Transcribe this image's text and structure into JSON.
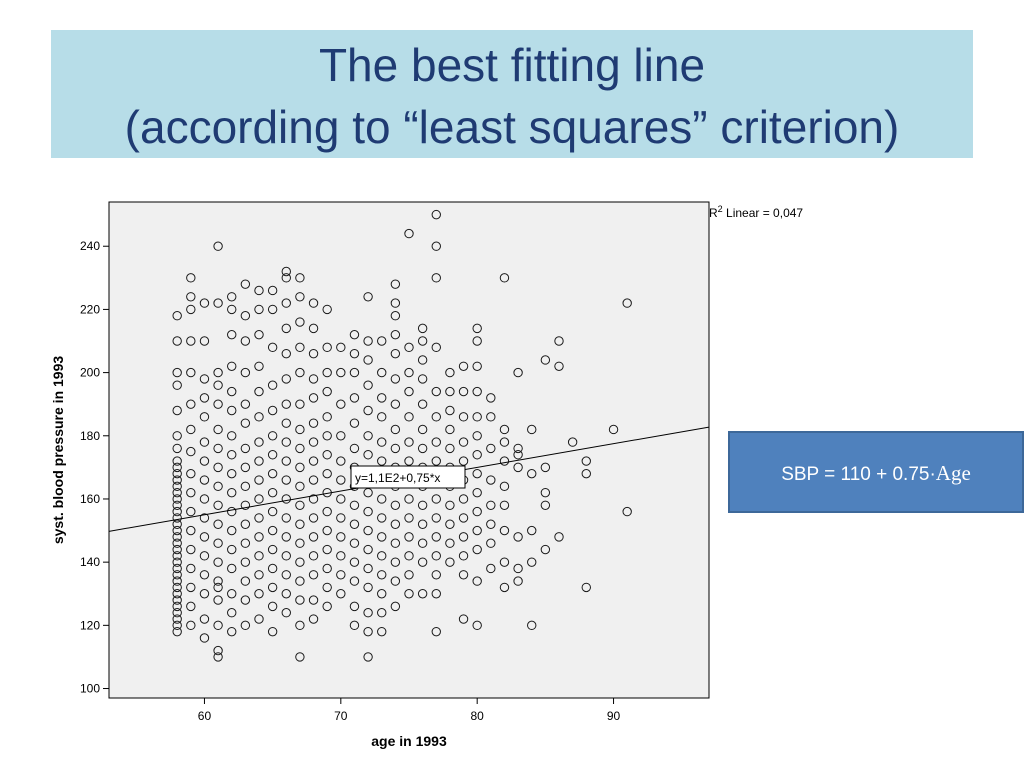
{
  "slide": {
    "title_line1": "The best fitting line",
    "title_line2": "(according to “least squares” criterion)",
    "equation_prefix": "SBP = 110 + 0.75·",
    "equation_var": "Age",
    "colors": {
      "title_band": "#b7dde8",
      "title_text": "#1f3b73",
      "equation_box": "#4f81bd"
    }
  },
  "chart_data": {
    "type": "scatter",
    "xlabel": "age in 1993",
    "ylabel": "syst. blood pressure in 1993",
    "xlim": [
      53,
      97
    ],
    "ylim": [
      97,
      254
    ],
    "xticks": [
      60,
      70,
      80,
      90
    ],
    "yticks": [
      100,
      120,
      140,
      160,
      180,
      200,
      220,
      240
    ],
    "fit_label": "y=1,1E2+0,75*x",
    "r2_prefix": "R",
    "r2_sup": "2",
    "r2_suffix": " Linear = 0,047",
    "fit_line": {
      "intercept": 110,
      "slope": 0.75
    },
    "grid": false,
    "points": [
      [
        58,
        118
      ],
      [
        58,
        120
      ],
      [
        58,
        122
      ],
      [
        58,
        124
      ],
      [
        58,
        126
      ],
      [
        58,
        128
      ],
      [
        58,
        130
      ],
      [
        58,
        132
      ],
      [
        58,
        134
      ],
      [
        58,
        136
      ],
      [
        58,
        138
      ],
      [
        58,
        140
      ],
      [
        58,
        142
      ],
      [
        58,
        144
      ],
      [
        58,
        146
      ],
      [
        58,
        148
      ],
      [
        58,
        150
      ],
      [
        58,
        152
      ],
      [
        58,
        154
      ],
      [
        58,
        156
      ],
      [
        58,
        158
      ],
      [
        58,
        160
      ],
      [
        58,
        162
      ],
      [
        58,
        164
      ],
      [
        58,
        166
      ],
      [
        58,
        168
      ],
      [
        58,
        170
      ],
      [
        58,
        172
      ],
      [
        58,
        176
      ],
      [
        58,
        180
      ],
      [
        58,
        188
      ],
      [
        58,
        196
      ],
      [
        58,
        200
      ],
      [
        58,
        210
      ],
      [
        58,
        218
      ],
      [
        59,
        120
      ],
      [
        59,
        126
      ],
      [
        59,
        132
      ],
      [
        59,
        138
      ],
      [
        59,
        144
      ],
      [
        59,
        150
      ],
      [
        59,
        156
      ],
      [
        59,
        162
      ],
      [
        59,
        168
      ],
      [
        59,
        175
      ],
      [
        59,
        182
      ],
      [
        59,
        190
      ],
      [
        59,
        200
      ],
      [
        59,
        210
      ],
      [
        59,
        220
      ],
      [
        59,
        224
      ],
      [
        59,
        230
      ],
      [
        60,
        116
      ],
      [
        60,
        122
      ],
      [
        60,
        130
      ],
      [
        60,
        136
      ],
      [
        60,
        142
      ],
      [
        60,
        148
      ],
      [
        60,
        154
      ],
      [
        60,
        160
      ],
      [
        60,
        166
      ],
      [
        60,
        172
      ],
      [
        60,
        178
      ],
      [
        60,
        186
      ],
      [
        60,
        192
      ],
      [
        60,
        198
      ],
      [
        60,
        210
      ],
      [
        60,
        222
      ],
      [
        61,
        110
      ],
      [
        61,
        112
      ],
      [
        61,
        120
      ],
      [
        61,
        128
      ],
      [
        61,
        132
      ],
      [
        61,
        134
      ],
      [
        61,
        140
      ],
      [
        61,
        146
      ],
      [
        61,
        152
      ],
      [
        61,
        158
      ],
      [
        61,
        164
      ],
      [
        61,
        170
      ],
      [
        61,
        176
      ],
      [
        61,
        182
      ],
      [
        61,
        190
      ],
      [
        61,
        196
      ],
      [
        61,
        200
      ],
      [
        61,
        222
      ],
      [
        61,
        240
      ],
      [
        62,
        118
      ],
      [
        62,
        124
      ],
      [
        62,
        130
      ],
      [
        62,
        138
      ],
      [
        62,
        144
      ],
      [
        62,
        150
      ],
      [
        62,
        156
      ],
      [
        62,
        162
      ],
      [
        62,
        168
      ],
      [
        62,
        174
      ],
      [
        62,
        180
      ],
      [
        62,
        188
      ],
      [
        62,
        194
      ],
      [
        62,
        202
      ],
      [
        62,
        212
      ],
      [
        62,
        220
      ],
      [
        62,
        224
      ],
      [
        63,
        120
      ],
      [
        63,
        128
      ],
      [
        63,
        134
      ],
      [
        63,
        140
      ],
      [
        63,
        146
      ],
      [
        63,
        152
      ],
      [
        63,
        158
      ],
      [
        63,
        164
      ],
      [
        63,
        170
      ],
      [
        63,
        176
      ],
      [
        63,
        184
      ],
      [
        63,
        190
      ],
      [
        63,
        200
      ],
      [
        63,
        210
      ],
      [
        63,
        218
      ],
      [
        63,
        228
      ],
      [
        64,
        122
      ],
      [
        64,
        130
      ],
      [
        64,
        136
      ],
      [
        64,
        142
      ],
      [
        64,
        148
      ],
      [
        64,
        154
      ],
      [
        64,
        160
      ],
      [
        64,
        166
      ],
      [
        64,
        172
      ],
      [
        64,
        178
      ],
      [
        64,
        186
      ],
      [
        64,
        194
      ],
      [
        64,
        202
      ],
      [
        64,
        212
      ],
      [
        64,
        220
      ],
      [
        64,
        226
      ],
      [
        65,
        118
      ],
      [
        65,
        126
      ],
      [
        65,
        132
      ],
      [
        65,
        138
      ],
      [
        65,
        144
      ],
      [
        65,
        150
      ],
      [
        65,
        156
      ],
      [
        65,
        162
      ],
      [
        65,
        168
      ],
      [
        65,
        174
      ],
      [
        65,
        180
      ],
      [
        65,
        188
      ],
      [
        65,
        196
      ],
      [
        65,
        208
      ],
      [
        65,
        220
      ],
      [
        65,
        226
      ],
      [
        66,
        124
      ],
      [
        66,
        130
      ],
      [
        66,
        136
      ],
      [
        66,
        142
      ],
      [
        66,
        148
      ],
      [
        66,
        154
      ],
      [
        66,
        160
      ],
      [
        66,
        166
      ],
      [
        66,
        172
      ],
      [
        66,
        178
      ],
      [
        66,
        184
      ],
      [
        66,
        190
      ],
      [
        66,
        198
      ],
      [
        66,
        206
      ],
      [
        66,
        214
      ],
      [
        66,
        222
      ],
      [
        66,
        230
      ],
      [
        66,
        232
      ],
      [
        67,
        110
      ],
      [
        67,
        120
      ],
      [
        67,
        128
      ],
      [
        67,
        134
      ],
      [
        67,
        140
      ],
      [
        67,
        146
      ],
      [
        67,
        152
      ],
      [
        67,
        158
      ],
      [
        67,
        164
      ],
      [
        67,
        170
      ],
      [
        67,
        176
      ],
      [
        67,
        182
      ],
      [
        67,
        190
      ],
      [
        67,
        200
      ],
      [
        67,
        208
      ],
      [
        67,
        216
      ],
      [
        67,
        224
      ],
      [
        67,
        230
      ],
      [
        68,
        122
      ],
      [
        68,
        128
      ],
      [
        68,
        136
      ],
      [
        68,
        142
      ],
      [
        68,
        148
      ],
      [
        68,
        154
      ],
      [
        68,
        160
      ],
      [
        68,
        166
      ],
      [
        68,
        172
      ],
      [
        68,
        178
      ],
      [
        68,
        184
      ],
      [
        68,
        192
      ],
      [
        68,
        198
      ],
      [
        68,
        206
      ],
      [
        68,
        214
      ],
      [
        68,
        222
      ],
      [
        69,
        126
      ],
      [
        69,
        132
      ],
      [
        69,
        138
      ],
      [
        69,
        144
      ],
      [
        69,
        150
      ],
      [
        69,
        156
      ],
      [
        69,
        162
      ],
      [
        69,
        168
      ],
      [
        69,
        174
      ],
      [
        69,
        180
      ],
      [
        69,
        186
      ],
      [
        69,
        194
      ],
      [
        69,
        200
      ],
      [
        69,
        208
      ],
      [
        69,
        220
      ],
      [
        70,
        130
      ],
      [
        70,
        136
      ],
      [
        70,
        142
      ],
      [
        70,
        148
      ],
      [
        70,
        154
      ],
      [
        70,
        160
      ],
      [
        70,
        166
      ],
      [
        70,
        172
      ],
      [
        70,
        180
      ],
      [
        70,
        190
      ],
      [
        70,
        200
      ],
      [
        70,
        208
      ],
      [
        71,
        120
      ],
      [
        71,
        126
      ],
      [
        71,
        134
      ],
      [
        71,
        140
      ],
      [
        71,
        146
      ],
      [
        71,
        152
      ],
      [
        71,
        158
      ],
      [
        71,
        164
      ],
      [
        71,
        170
      ],
      [
        71,
        176
      ],
      [
        71,
        184
      ],
      [
        71,
        192
      ],
      [
        71,
        200
      ],
      [
        71,
        206
      ],
      [
        71,
        212
      ],
      [
        72,
        110
      ],
      [
        72,
        118
      ],
      [
        72,
        124
      ],
      [
        72,
        132
      ],
      [
        72,
        138
      ],
      [
        72,
        144
      ],
      [
        72,
        150
      ],
      [
        72,
        156
      ],
      [
        72,
        162
      ],
      [
        72,
        168
      ],
      [
        72,
        174
      ],
      [
        72,
        180
      ],
      [
        72,
        188
      ],
      [
        72,
        196
      ],
      [
        72,
        204
      ],
      [
        72,
        210
      ],
      [
        72,
        224
      ],
      [
        73,
        118
      ],
      [
        73,
        124
      ],
      [
        73,
        130
      ],
      [
        73,
        136
      ],
      [
        73,
        142
      ],
      [
        73,
        148
      ],
      [
        73,
        154
      ],
      [
        73,
        160
      ],
      [
        73,
        166
      ],
      [
        73,
        172
      ],
      [
        73,
        178
      ],
      [
        73,
        186
      ],
      [
        73,
        192
      ],
      [
        73,
        200
      ],
      [
        73,
        210
      ],
      [
        74,
        126
      ],
      [
        74,
        134
      ],
      [
        74,
        140
      ],
      [
        74,
        146
      ],
      [
        74,
        152
      ],
      [
        74,
        158
      ],
      [
        74,
        164
      ],
      [
        74,
        170
      ],
      [
        74,
        176
      ],
      [
        74,
        182
      ],
      [
        74,
        190
      ],
      [
        74,
        198
      ],
      [
        74,
        206
      ],
      [
        74,
        212
      ],
      [
        74,
        218
      ],
      [
        74,
        222
      ],
      [
        74,
        228
      ],
      [
        75,
        130
      ],
      [
        75,
        136
      ],
      [
        75,
        142
      ],
      [
        75,
        148
      ],
      [
        75,
        154
      ],
      [
        75,
        160
      ],
      [
        75,
        166
      ],
      [
        75,
        172
      ],
      [
        75,
        178
      ],
      [
        75,
        186
      ],
      [
        75,
        194
      ],
      [
        75,
        200
      ],
      [
        75,
        208
      ],
      [
        75,
        244
      ],
      [
        76,
        130
      ],
      [
        76,
        140
      ],
      [
        76,
        146
      ],
      [
        76,
        152
      ],
      [
        76,
        158
      ],
      [
        76,
        164
      ],
      [
        76,
        170
      ],
      [
        76,
        176
      ],
      [
        76,
        182
      ],
      [
        76,
        190
      ],
      [
        76,
        198
      ],
      [
        76,
        204
      ],
      [
        76,
        210
      ],
      [
        76,
        214
      ],
      [
        77,
        118
      ],
      [
        77,
        130
      ],
      [
        77,
        136
      ],
      [
        77,
        142
      ],
      [
        77,
        148
      ],
      [
        77,
        154
      ],
      [
        77,
        160
      ],
      [
        77,
        166
      ],
      [
        77,
        172
      ],
      [
        77,
        178
      ],
      [
        77,
        186
      ],
      [
        77,
        194
      ],
      [
        77,
        208
      ],
      [
        77,
        230
      ],
      [
        77,
        240
      ],
      [
        77,
        250
      ],
      [
        78,
        140
      ],
      [
        78,
        146
      ],
      [
        78,
        152
      ],
      [
        78,
        158
      ],
      [
        78,
        164
      ],
      [
        78,
        170
      ],
      [
        78,
        176
      ],
      [
        78,
        182
      ],
      [
        78,
        188
      ],
      [
        78,
        194
      ],
      [
        78,
        200
      ],
      [
        79,
        122
      ],
      [
        79,
        136
      ],
      [
        79,
        142
      ],
      [
        79,
        148
      ],
      [
        79,
        154
      ],
      [
        79,
        160
      ],
      [
        79,
        166
      ],
      [
        79,
        172
      ],
      [
        79,
        178
      ],
      [
        79,
        186
      ],
      [
        79,
        194
      ],
      [
        79,
        202
      ],
      [
        80,
        120
      ],
      [
        80,
        134
      ],
      [
        80,
        144
      ],
      [
        80,
        150
      ],
      [
        80,
        156
      ],
      [
        80,
        162
      ],
      [
        80,
        168
      ],
      [
        80,
        174
      ],
      [
        80,
        180
      ],
      [
        80,
        186
      ],
      [
        80,
        194
      ],
      [
        80,
        202
      ],
      [
        80,
        210
      ],
      [
        80,
        214
      ],
      [
        81,
        138
      ],
      [
        81,
        146
      ],
      [
        81,
        152
      ],
      [
        81,
        158
      ],
      [
        81,
        166
      ],
      [
        81,
        176
      ],
      [
        81,
        186
      ],
      [
        81,
        192
      ],
      [
        82,
        132
      ],
      [
        82,
        140
      ],
      [
        82,
        150
      ],
      [
        82,
        158
      ],
      [
        82,
        164
      ],
      [
        82,
        172
      ],
      [
        82,
        178
      ],
      [
        82,
        182
      ],
      [
        82,
        230
      ],
      [
        83,
        134
      ],
      [
        83,
        138
      ],
      [
        83,
        148
      ],
      [
        83,
        170
      ],
      [
        83,
        174
      ],
      [
        83,
        176
      ],
      [
        83,
        200
      ],
      [
        84,
        120
      ],
      [
        84,
        140
      ],
      [
        84,
        150
      ],
      [
        84,
        168
      ],
      [
        84,
        182
      ],
      [
        85,
        144
      ],
      [
        85,
        158
      ],
      [
        85,
        162
      ],
      [
        85,
        170
      ],
      [
        85,
        204
      ],
      [
        86,
        148
      ],
      [
        86,
        202
      ],
      [
        86,
        210
      ],
      [
        87,
        178
      ],
      [
        88,
        132
      ],
      [
        88,
        168
      ],
      [
        88,
        172
      ],
      [
        90,
        182
      ],
      [
        91,
        156
      ],
      [
        91,
        222
      ]
    ]
  }
}
